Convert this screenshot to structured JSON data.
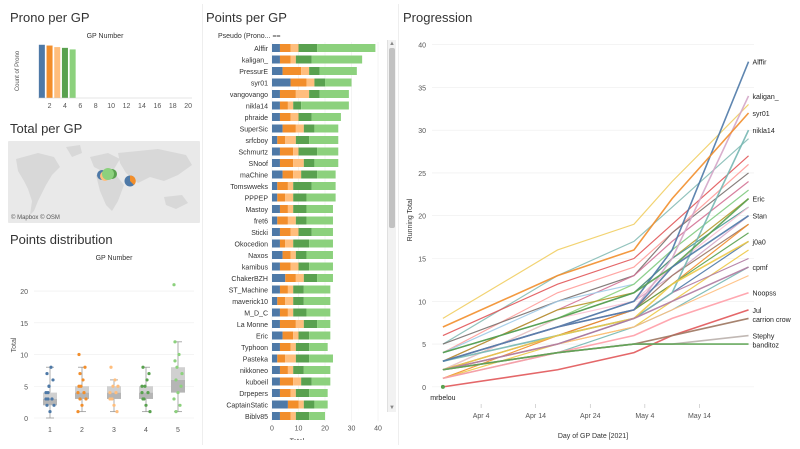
{
  "titles": {
    "prono_per_gp": "Prono per GP",
    "total_per_gp": "Total per GP",
    "points_distribution": "Points distribution",
    "points_per_gp": "Points per GP",
    "progression": "Progression"
  },
  "map": {
    "credit": "© Mapbox © OSM"
  },
  "colors": {
    "gp1": "#4e79a7",
    "gp2": "#f28e2b",
    "gp3": "#ffbe7d",
    "gp4": "#59a14f",
    "gp5": "#8cd17d"
  },
  "chart_data": [
    {
      "id": "prono",
      "type": "bar",
      "header": "GP Number",
      "ylabel": "Count of Prono",
      "categories": [
        1,
        2,
        3,
        4,
        5
      ],
      "values": [
        69,
        68,
        66,
        65,
        63
      ],
      "x_ticks": [
        "2",
        "4",
        "6",
        "8",
        "10",
        "12",
        "14",
        "16",
        "18",
        "20"
      ],
      "xlim": [
        0.5,
        20.5
      ],
      "ylim": [
        0,
        70
      ]
    },
    {
      "id": "stacked",
      "type": "bar",
      "orientation": "horizontal",
      "stacked": true,
      "ylabel": "Pseudo (Prono...",
      "xlabel": "Total",
      "x_ticks": [
        "0",
        "10",
        "20",
        "30",
        "40"
      ],
      "xlim": [
        0,
        43
      ],
      "players": [
        "Alffir",
        "kaligan_",
        "PressurE",
        "syr01",
        "vangovango",
        "nikla14",
        "phraide",
        "SuperSic",
        "srfcboy",
        "Schmurtz",
        "SNoof",
        "maChine",
        "Tomswweks",
        "PPPEP",
        "Mastoy",
        "fret6",
        "Sticki",
        "Okocedion",
        "Naxos",
        "kamibus",
        "ChakerBZH",
        "ST_Machine",
        "maverick10",
        "M_D_C",
        "La Monne",
        "Eric",
        "Typhoon",
        "Pasteka",
        "nikkoneo",
        "kuboeil",
        "Drpepers",
        "CaptainStatic",
        "Biblv85"
      ],
      "series": [
        {
          "gp": 1,
          "values": [
            3,
            3,
            4,
            7,
            3,
            3,
            3,
            4,
            2,
            3,
            3,
            4,
            2,
            2,
            3,
            2,
            3,
            3,
            4,
            3,
            5,
            3,
            2,
            3,
            3,
            4,
            3,
            2,
            3,
            3,
            3,
            6,
            3
          ]
        },
        {
          "gp": 2,
          "values": [
            4,
            4,
            7,
            6,
            6,
            3,
            4,
            5,
            3,
            5,
            5,
            4,
            4,
            3,
            3,
            4,
            4,
            2,
            3,
            4,
            4,
            3,
            3,
            3,
            6,
            4,
            4,
            3,
            3,
            5,
            4,
            4,
            4
          ]
        },
        {
          "gp": 3,
          "values": [
            3,
            2,
            3,
            3,
            5,
            2,
            3,
            3,
            4,
            2,
            4,
            3,
            2,
            3,
            2,
            3,
            3,
            3,
            2,
            3,
            3,
            2,
            3,
            2,
            3,
            2,
            2,
            4,
            2,
            3,
            2,
            2,
            2
          ]
        },
        {
          "gp": 4,
          "values": [
            7,
            6,
            4,
            4,
            4,
            3,
            5,
            4,
            5,
            7,
            4,
            6,
            7,
            5,
            5,
            4,
            5,
            6,
            4,
            4,
            5,
            4,
            4,
            5,
            5,
            4,
            5,
            5,
            4,
            4,
            5,
            4,
            5
          ]
        },
        {
          "gp": 5,
          "values": [
            22,
            19,
            14,
            10,
            11,
            18,
            11,
            9,
            11,
            8,
            9,
            7,
            9,
            11,
            10,
            10,
            8,
            9,
            10,
            9,
            6,
            10,
            10,
            9,
            5,
            8,
            7,
            9,
            10,
            7,
            7,
            5,
            6
          ]
        }
      ]
    },
    {
      "id": "box",
      "type": "box",
      "header": "GP Number",
      "ylabel": "Total",
      "categories": [
        "1",
        "2",
        "3",
        "4",
        "5"
      ],
      "y_ticks": [
        "0",
        "5",
        "10",
        "15",
        "20"
      ],
      "ylim": [
        0,
        23
      ],
      "boxes": [
        {
          "min": 0,
          "q1": 2,
          "median": 3,
          "q3": 4,
          "max": 8
        },
        {
          "min": 1,
          "q1": 3,
          "median": 4,
          "q3": 5,
          "max": 8
        },
        {
          "min": 1,
          "q1": 3,
          "median": 4,
          "q3": 5,
          "max": 6
        },
        {
          "min": 1,
          "q1": 3,
          "median": 4,
          "q3": 5,
          "max": 8
        },
        {
          "min": 1,
          "q1": 4,
          "median": 6,
          "q3": 8,
          "max": 12
        }
      ],
      "points": [
        [
          3,
          2,
          4,
          5,
          1,
          8,
          3,
          6,
          2,
          4,
          7,
          3,
          5
        ],
        [
          4,
          10,
          3,
          5,
          2,
          6,
          4,
          8,
          3,
          1,
          5,
          7
        ],
        [
          4,
          8,
          3,
          5,
          2,
          6,
          4,
          1,
          5,
          3
        ],
        [
          4,
          8,
          3,
          5,
          2,
          6,
          4,
          7,
          1,
          5,
          3
        ],
        [
          21,
          12,
          6,
          8,
          4,
          10,
          2,
          5,
          7,
          3,
          9,
          1
        ]
      ]
    },
    {
      "id": "progression",
      "type": "line",
      "ylabel": "Running Total",
      "xlabel": "Day of GP Date [2021]",
      "x_ticks": [
        "Apr 4",
        "Apr 14",
        "Apr 24",
        "May 4",
        "May 14"
      ],
      "y_ticks": [
        "0",
        "5",
        "10",
        "15",
        "20",
        "25",
        "30",
        "35",
        "40"
      ],
      "ylim": [
        -2,
        41
      ],
      "gp_dates": [
        "Mar 28",
        "Apr 18",
        "May 2",
        "May 9",
        "May 23"
      ],
      "labeled_series": [
        {
          "name": "Alffir",
          "color": "#4e79a7",
          "values": [
            3,
            7,
            10,
            16,
            38
          ]
        },
        {
          "name": "kaligan_",
          "color": "#d4a6c8",
          "values": [
            3,
            7,
            9,
            15,
            34
          ]
        },
        {
          "name": "syr01",
          "color": "#f28e2b",
          "values": [
            7,
            13,
            16,
            22,
            32
          ]
        },
        {
          "name": "nikla14",
          "color": "#76b7b2",
          "values": [
            3,
            6,
            8,
            11,
            30
          ]
        },
        {
          "name": "Eric",
          "color": "#59a14f",
          "values": [
            4,
            8,
            11,
            14,
            22
          ]
        },
        {
          "name": "Stan",
          "color": "#4e79a7",
          "values": [
            3,
            7,
            9,
            14,
            20
          ]
        },
        {
          "name": "j0a0",
          "color": "#edc948",
          "values": [
            2,
            6,
            8,
            12,
            17
          ]
        },
        {
          "name": "cpmf",
          "color": "#b07aa1",
          "values": [
            2,
            5,
            8,
            10,
            14
          ]
        },
        {
          "name": "Noopss",
          "color": "#ff9da7",
          "values": [
            1,
            4,
            6,
            8,
            11
          ]
        },
        {
          "name": "Jul",
          "color": "#e15759",
          "values": [
            0,
            2,
            4,
            6,
            9
          ]
        },
        {
          "name": "carrion crow",
          "color": "#9c755f",
          "values": [
            2,
            4,
            5,
            6,
            8
          ]
        },
        {
          "name": "Stephy",
          "color": "#bab0ac",
          "values": [
            2,
            4,
            5,
            5,
            6
          ]
        },
        {
          "name": "banditoz",
          "color": "#59a14f",
          "values": [
            2,
            4,
            5,
            5,
            5
          ]
        },
        {
          "name": "mrbelou",
          "color": "#59a14f",
          "values": [
            0
          ]
        }
      ],
      "unlabeled_series": [
        [
          8,
          16,
          19,
          24,
          33
        ],
        [
          5,
          13,
          17,
          21,
          29
        ],
        [
          6,
          12,
          15,
          19,
          27
        ],
        [
          4,
          11,
          14,
          18,
          26
        ],
        [
          5,
          10,
          13,
          18,
          25
        ],
        [
          3,
          9,
          13,
          17,
          24
        ],
        [
          4,
          10,
          12,
          16,
          23
        ],
        [
          2,
          8,
          12,
          16,
          23
        ],
        [
          3,
          9,
          11,
          15,
          22
        ],
        [
          4,
          8,
          11,
          15,
          21
        ],
        [
          2,
          8,
          10,
          14,
          21
        ],
        [
          3,
          7,
          10,
          13,
          20
        ],
        [
          2,
          6,
          9,
          13,
          19
        ],
        [
          1,
          6,
          9,
          12,
          19
        ],
        [
          3,
          7,
          9,
          12,
          18
        ],
        [
          2,
          5,
          8,
          11,
          17
        ],
        [
          1,
          5,
          7,
          10,
          16
        ],
        [
          2,
          6,
          8,
          11,
          15
        ],
        [
          1,
          4,
          7,
          9,
          14
        ],
        [
          2,
          5,
          7,
          9,
          13
        ]
      ]
    }
  ]
}
